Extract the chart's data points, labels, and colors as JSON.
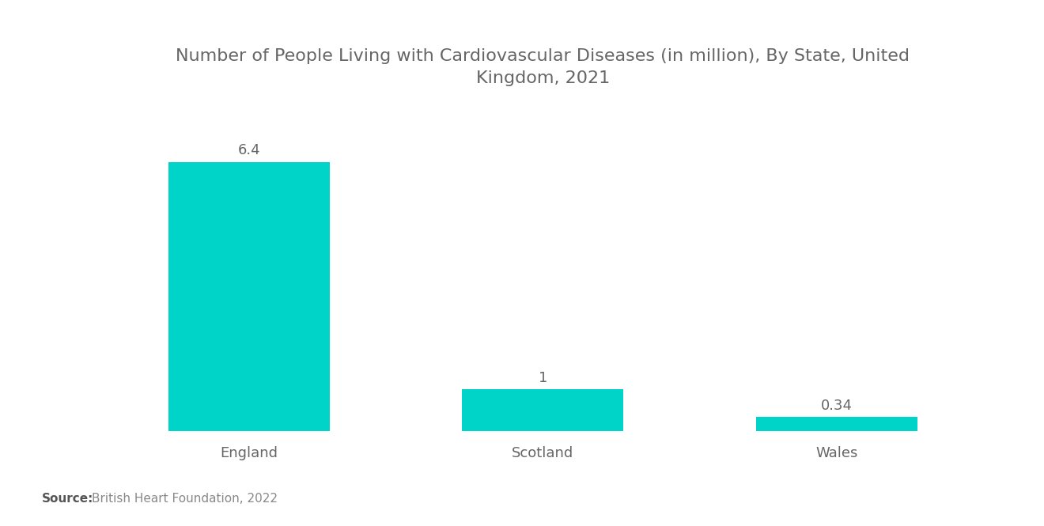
{
  "title": "Number of People Living with Cardiovascular Diseases (in million), By State, United\nKingdom, 2021",
  "categories": [
    "England",
    "Scotland",
    "Wales"
  ],
  "values": [
    6.4,
    1.0,
    0.34
  ],
  "bar_color": "#00D4C8",
  "value_labels": [
    "6.4",
    "1",
    "0.34"
  ],
  "source_bold": "Source:",
  "source_text": "British Heart Foundation, 2022",
  "background_color": "#ffffff",
  "title_color": "#666666",
  "label_color": "#666666",
  "value_color": "#666666",
  "source_color": "#888888",
  "title_fontsize": 16,
  "label_fontsize": 13,
  "value_fontsize": 13,
  "source_fontsize": 11,
  "bar_width": 0.55,
  "ylim": [
    0,
    7.5
  ],
  "x_positions": [
    0,
    1,
    2
  ]
}
